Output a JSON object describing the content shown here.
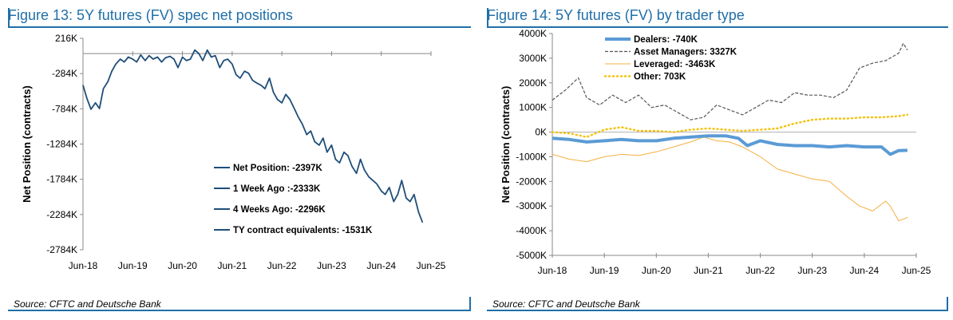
{
  "left": {
    "title": "Figure 13: 5Y futures (FV) spec net positions",
    "source": "Source: CFTC and Deutsche Bank",
    "chart_data": {
      "type": "line",
      "ylabel": "Net Position (contracts)",
      "xlabel": "",
      "ylim": [
        -2784,
        216
      ],
      "yunits": "K",
      "yticks": [
        "216K",
        "-284K",
        "-784K",
        "-1284K",
        "-1784K",
        "-2284K",
        "-2784K"
      ],
      "ytick_values": [
        216,
        -284,
        -784,
        -1284,
        -1784,
        -2284,
        -2784
      ],
      "xticks": [
        "Jun-18",
        "Jun-19",
        "Jun-20",
        "Jun-21",
        "Jun-22",
        "Jun-23",
        "Jun-24",
        "Jun-25"
      ],
      "xlim": [
        2018.42,
        2025.42
      ],
      "legend": [
        "Net Position: -2397K",
        "1 Week Ago :-2333K",
        "4 Weeks Ago: -2296K",
        "TY contract equivalents: -1531K"
      ],
      "legend_position": "bottom-right",
      "color": "#1f4e79",
      "series": [
        {
          "x": [
            2018.42,
            2018.5,
            2018.58,
            2018.67,
            2018.75,
            2018.83,
            2018.92,
            2019.0,
            2019.08,
            2019.17,
            2019.25,
            2019.33,
            2019.42,
            2019.5,
            2019.58,
            2019.67,
            2019.75,
            2019.83,
            2019.92,
            2020.0,
            2020.08,
            2020.17,
            2020.25,
            2020.33,
            2020.42,
            2020.5,
            2020.58,
            2020.67,
            2020.75,
            2020.83,
            2020.92,
            2021.0,
            2021.08,
            2021.17,
            2021.25,
            2021.33,
            2021.42,
            2021.5,
            2021.58,
            2021.67,
            2021.75,
            2021.83,
            2021.92,
            2022.0,
            2022.08,
            2022.17,
            2022.25,
            2022.33,
            2022.42,
            2022.5,
            2022.58,
            2022.67,
            2022.75,
            2022.83,
            2022.92,
            2023.0,
            2023.08,
            2023.17,
            2023.25,
            2023.33,
            2023.42,
            2023.5,
            2023.58,
            2023.67,
            2023.75,
            2023.83,
            2023.92,
            2024.0,
            2024.08,
            2024.17,
            2024.25,
            2024.33,
            2024.42,
            2024.5,
            2024.58,
            2024.67,
            2024.75,
            2024.83,
            2024.92,
            2025.0,
            2025.08,
            2025.17,
            2025.25
          ],
          "y": [
            -450,
            -640,
            -790,
            -700,
            -780,
            -500,
            -400,
            -250,
            -150,
            -80,
            -120,
            -50,
            -80,
            -120,
            -20,
            -100,
            -30,
            -80,
            -50,
            -120,
            -60,
            -40,
            -80,
            -200,
            -50,
            -100,
            -80,
            50,
            0,
            -100,
            50,
            -50,
            -30,
            -200,
            -100,
            -80,
            -150,
            -300,
            -350,
            -250,
            -280,
            -380,
            -420,
            -450,
            -500,
            -350,
            -550,
            -650,
            -700,
            -580,
            -650,
            -780,
            -900,
            -1000,
            -1150,
            -1100,
            -1250,
            -1300,
            -1200,
            -1400,
            -1300,
            -1500,
            -1550,
            -1400,
            -1450,
            -1600,
            -1700,
            -1500,
            -1650,
            -1750,
            -1800,
            -1850,
            -1950,
            -2000,
            -1900,
            -2100,
            -2000,
            -1800,
            -2050,
            -2100,
            -2000,
            -2250,
            -2397
          ]
        }
      ]
    }
  },
  "right": {
    "title": "Figure 14: 5Y futures (FV) by trader type",
    "source": "Source: CFTC and Deutsche Bank",
    "chart_data": {
      "type": "line",
      "ylabel": "Net Position (contracts)",
      "xlabel": "",
      "ylim": [
        -5000,
        4000
      ],
      "yunits": "K",
      "yticks": [
        "4000K",
        "3000K",
        "2000K",
        "1000K",
        "0K",
        "-1000K",
        "-2000K",
        "-3000K",
        "-4000K",
        "-5000K"
      ],
      "ytick_values": [
        4000,
        3000,
        2000,
        1000,
        0,
        -1000,
        -2000,
        -3000,
        -4000,
        -5000
      ],
      "xticks": [
        "Jun-18",
        "Jun-19",
        "Jun-20",
        "Jun-21",
        "Jun-22",
        "Jun-23",
        "Jun-24",
        "Jun-25"
      ],
      "xlim": [
        2018.42,
        2025.42
      ],
      "legend_position": "top-left",
      "series": [
        {
          "name": "Dealers: -740K",
          "color": "#5b9bd5",
          "style": "solid-thick",
          "x": [
            2018.42,
            2018.75,
            2019.08,
            2019.42,
            2019.75,
            2020.08,
            2020.42,
            2020.75,
            2021.08,
            2021.42,
            2021.75,
            2022.0,
            2022.17,
            2022.42,
            2022.75,
            2023.08,
            2023.42,
            2023.75,
            2024.08,
            2024.42,
            2024.75,
            2024.92,
            2025.08,
            2025.25
          ],
          "y": [
            -250,
            -300,
            -400,
            -350,
            -300,
            -350,
            -350,
            -250,
            -200,
            -150,
            -150,
            -250,
            -550,
            -350,
            -500,
            -550,
            -550,
            -600,
            -550,
            -600,
            -600,
            -900,
            -750,
            -740
          ]
        },
        {
          "name": "Asset Managers: 3327K",
          "color": "#555555",
          "style": "dashed",
          "x": [
            2018.42,
            2018.67,
            2018.92,
            2019.08,
            2019.33,
            2019.58,
            2019.83,
            2020.08,
            2020.33,
            2020.58,
            2020.83,
            2021.08,
            2021.33,
            2021.58,
            2021.83,
            2022.08,
            2022.33,
            2022.58,
            2022.83,
            2023.08,
            2023.33,
            2023.58,
            2023.83,
            2024.08,
            2024.33,
            2024.58,
            2024.83,
            2025.08,
            2025.17,
            2025.25
          ],
          "y": [
            1300,
            1700,
            2200,
            1400,
            1100,
            1500,
            1200,
            1500,
            1000,
            1100,
            800,
            500,
            600,
            1100,
            900,
            700,
            1000,
            1300,
            1200,
            1600,
            1500,
            1500,
            1400,
            1700,
            2600,
            2800,
            2900,
            3200,
            3600,
            3327
          ]
        },
        {
          "name": "Leveraged: -3463K",
          "color": "#f5b041",
          "style": "solid-thin",
          "x": [
            2018.42,
            2018.75,
            2019.08,
            2019.42,
            2019.75,
            2020.08,
            2020.42,
            2020.75,
            2021.08,
            2021.33,
            2021.58,
            2021.83,
            2022.08,
            2022.42,
            2022.75,
            2023.08,
            2023.42,
            2023.75,
            2024.08,
            2024.33,
            2024.58,
            2024.83,
            2024.92,
            2025.08,
            2025.25
          ],
          "y": [
            -900,
            -1100,
            -1200,
            -1000,
            -900,
            -950,
            -800,
            -600,
            -400,
            -200,
            -350,
            -400,
            -600,
            -1000,
            -1500,
            -1700,
            -1900,
            -2000,
            -2600,
            -3000,
            -3200,
            -2800,
            -3000,
            -3600,
            -3463
          ]
        },
        {
          "name": "Other: 703K",
          "color": "#f4c20d",
          "style": "dotted",
          "x": [
            2018.42,
            2018.75,
            2019.08,
            2019.42,
            2019.75,
            2020.08,
            2020.42,
            2020.75,
            2021.08,
            2021.42,
            2021.75,
            2022.08,
            2022.42,
            2022.75,
            2023.08,
            2023.42,
            2023.75,
            2024.08,
            2024.42,
            2024.75,
            2025.08,
            2025.25
          ],
          "y": [
            0,
            -50,
            -200,
            100,
            200,
            50,
            50,
            0,
            100,
            150,
            100,
            50,
            100,
            150,
            350,
            500,
            550,
            550,
            600,
            600,
            650,
            703
          ]
        }
      ]
    }
  }
}
